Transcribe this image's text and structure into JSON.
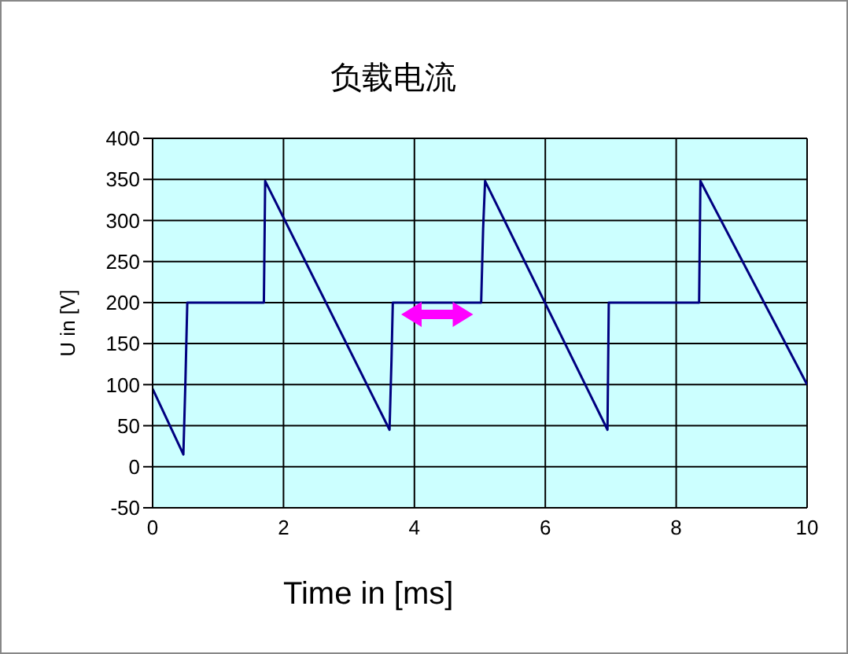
{
  "chart_data": {
    "type": "line",
    "title": "负载电流",
    "xlabel": "Time in [ms]",
    "ylabel": "U in [V]",
    "x": [
      0,
      0.47,
      0.5,
      0.53,
      1.7,
      1.72,
      3.62,
      3.65,
      3.67,
      5.02,
      5.05,
      5.08,
      6.95,
      6.97,
      8.35,
      8.37,
      10
    ],
    "series": [
      {
        "color": "#000080",
        "values": [
          95,
          15,
          100,
          200,
          200,
          348,
          45,
          130,
          200,
          200,
          290,
          348,
          45,
          200,
          200,
          348,
          100
        ]
      }
    ],
    "xlim": [
      0,
      10
    ],
    "xticks": [
      0,
      2,
      4,
      6,
      8,
      10
    ],
    "ylim": [
      -50,
      400
    ],
    "yticks": [
      -50,
      0,
      50,
      100,
      150,
      200,
      250,
      300,
      350,
      400
    ],
    "grid": true,
    "marker": "none",
    "line_style": "solid"
  }
}
